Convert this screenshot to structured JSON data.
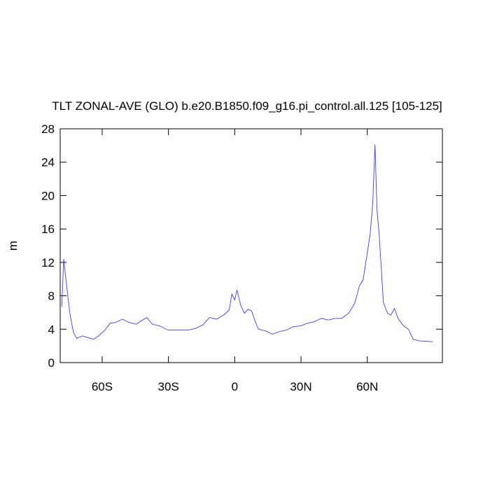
{
  "chart_data": {
    "type": "line",
    "title": "TLT ZONAL-AVE (GLO) b.e20.B1850.f09_g16.pi_control.all.125 [105-125]",
    "y_label": "m",
    "x": [
      -78.3,
      -77.4,
      -76,
      -74.5,
      -73,
      -71.5,
      -69,
      -66.6,
      -64,
      -61.6,
      -58.7,
      -56.5,
      -54,
      -50.8,
      -47.7,
      -44.5,
      -43,
      -39.8,
      -37.3,
      -34,
      -30.3,
      -25.6,
      -20.8,
      -17.7,
      -14.5,
      -11.4,
      -8.2,
      -5,
      -2.5,
      -1.3,
      0,
      1,
      2.8,
      4.4,
      6,
      7.6,
      9.2,
      10.7,
      13.9,
      17,
      20.2,
      23.4,
      26.5,
      29.7,
      32.8,
      36,
      39.2,
      42.3,
      45.5,
      48.6,
      51.8,
      54.3,
      56.5,
      58.1,
      59.7,
      61.3,
      62.5,
      63.5,
      64.4,
      65.4,
      66.3,
      67.3,
      69.2,
      70.7,
      72.3,
      73.9,
      76.4,
      78.6,
      80.8,
      83.4,
      89.7
    ],
    "series": [
      {
        "color": "#3b3bf5",
        "values": [
          6.7,
          12.4,
          9,
          5.7,
          3.6,
          2.9,
          3.2,
          3.0,
          2.8,
          3.2,
          3.9,
          4.7,
          4.8,
          5.2,
          4.8,
          4.6,
          4.9,
          5.4,
          4.6,
          4.4,
          3.9,
          3.9,
          3.9,
          4.1,
          4.5,
          5.4,
          5.2,
          5.7,
          6.3,
          8.2,
          7.5,
          8.7,
          6.8,
          5.9,
          6.4,
          6.2,
          5.0,
          4.0,
          3.8,
          3.4,
          3.7,
          3.9,
          4.3,
          4.4,
          4.7,
          4.9,
          5.3,
          5.1,
          5.3,
          5.3,
          6.0,
          7.1,
          9.2,
          9.9,
          12.6,
          15.4,
          19.1,
          26.1,
          18.3,
          15.3,
          11.4,
          7.2,
          5.9,
          5.7,
          6.5,
          5.3,
          4.4,
          4.0,
          2.8,
          2.6,
          2.5
        ]
      }
    ],
    "xlim": [
      -79,
      94
    ],
    "xticks": [
      {
        "value": -60,
        "label": "60S"
      },
      {
        "value": -30,
        "label": "30S"
      },
      0,
      {
        "value": 30,
        "label": "30N"
      },
      {
        "value": 60,
        "label": "60N"
      }
    ],
    "ylim": [
      0,
      28
    ],
    "yticks": [
      0,
      4,
      8,
      12,
      16,
      20,
      24,
      28
    ]
  }
}
